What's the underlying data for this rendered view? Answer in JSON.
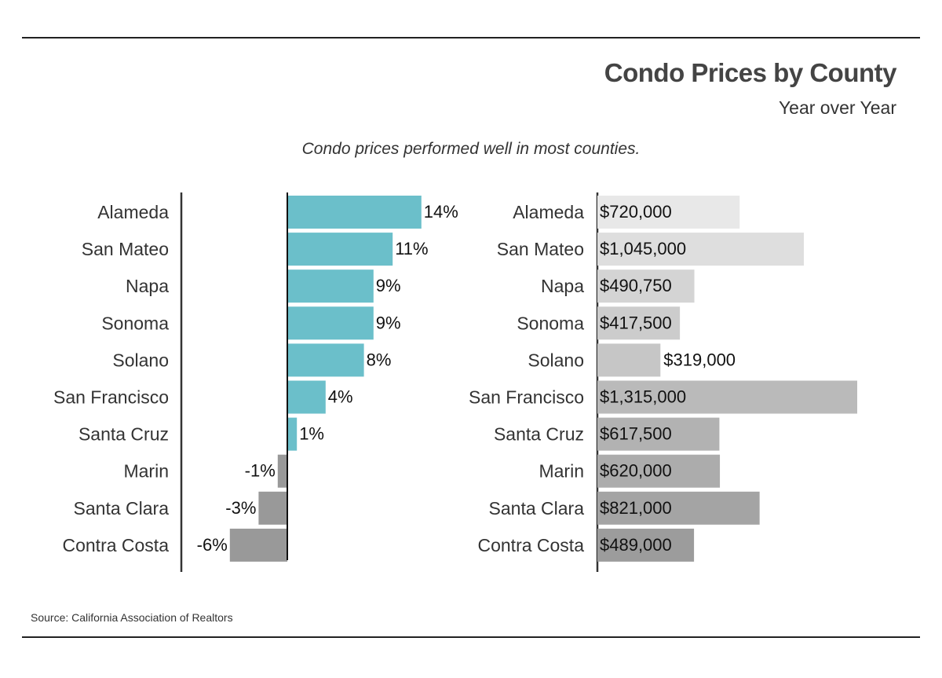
{
  "header": {
    "title": "Condo Prices by County",
    "subtitle": "Year over Year"
  },
  "annotation": "Condo prices performed well in most counties.",
  "footer": {
    "source": "Source:  California Association of Realtors"
  },
  "colors": {
    "positive": "#6bbfca",
    "negative": "#999999",
    "price_shades": [
      "#e8e8e8",
      "#dedede",
      "#d4d4d4",
      "#cccccc",
      "#c6c6c6",
      "#bababa",
      "#b2b2b2",
      "#acacac",
      "#a4a4a4",
      "#9c9c9c"
    ]
  },
  "chart_data": [
    {
      "type": "bar",
      "orientation": "horizontal",
      "categories": [
        "Alameda",
        "San Mateo",
        "Napa",
        "Sonoma",
        "Solano",
        "San Francisco",
        "Santa Cruz",
        "Marin",
        "Santa Clara",
        "Contra Costa"
      ],
      "values": [
        14,
        11,
        9,
        9,
        8,
        4,
        1,
        -1,
        -3,
        -6
      ],
      "value_labels": [
        "14%",
        "11%",
        "9%",
        "9%",
        "8%",
        "4%",
        "1%",
        "-1%",
        "-3%",
        "-6%"
      ],
      "xlim": [
        -6,
        14
      ],
      "grid": false
    },
    {
      "type": "bar",
      "orientation": "horizontal",
      "categories": [
        "Alameda",
        "San Mateo",
        "Napa",
        "Sonoma",
        "Solano",
        "San Francisco",
        "Santa Cruz",
        "Marin",
        "Santa Clara",
        "Contra Costa"
      ],
      "values": [
        720000,
        1045000,
        490750,
        417500,
        319000,
        1315000,
        617500,
        620000,
        821000,
        489000
      ],
      "value_labels": [
        "$720,000",
        "$1,045,000",
        "$490,750",
        "$417,500",
        "$319,000",
        "$1,315,000",
        "$617,500",
        "$620,000",
        "$821,000",
        "$489,000"
      ],
      "xlim": [
        0,
        1315000
      ],
      "grid": false
    }
  ]
}
